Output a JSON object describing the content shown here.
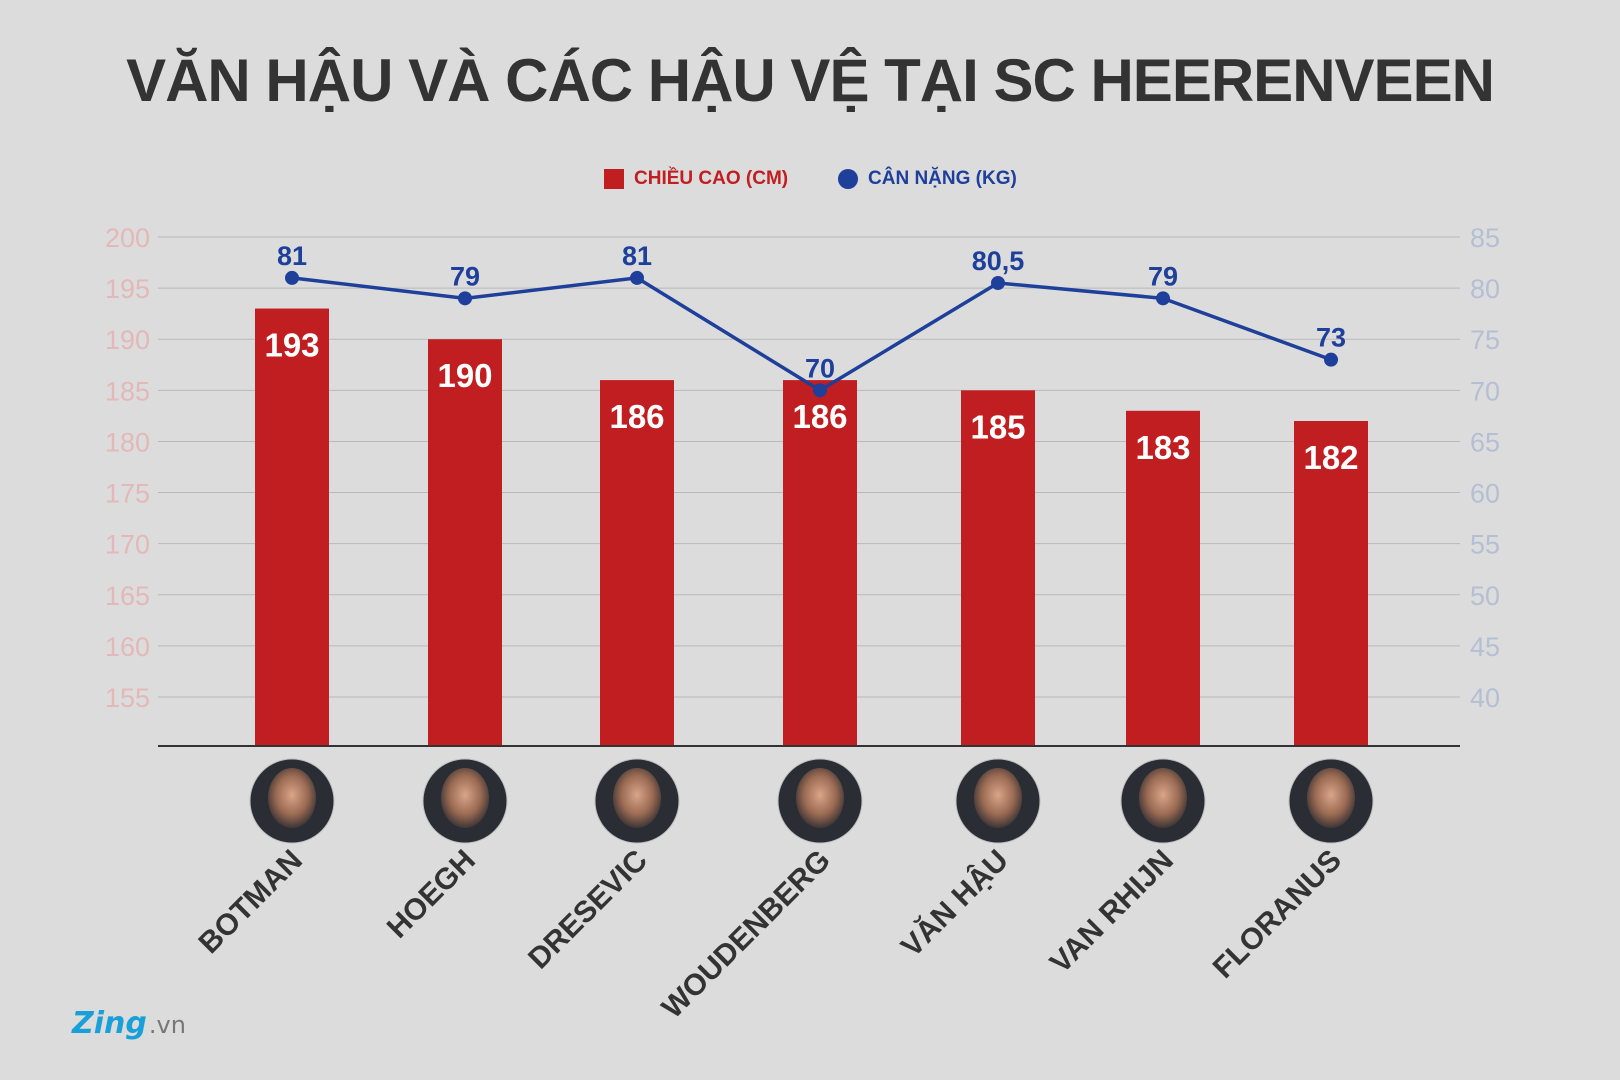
{
  "title": "VĂN HẬU VÀ CÁC HẬU VỆ TẠI SC HEERENVEEN",
  "legend": {
    "height_label": "CHIỀU CAO (CM)",
    "weight_label": "CÂN NẶNG (KG)"
  },
  "colors": {
    "bar": "#c01e20",
    "line": "#1e3f9a",
    "left_axis": "#e3b8b8",
    "right_axis": "#b4bfd3",
    "title": "#333333",
    "background": "#dcdcdc"
  },
  "chart_data": {
    "type": "bar",
    "title": "VĂN HẬU VÀ CÁC HẬU VỆ TẠI SC HEERENVEEN",
    "categories": [
      "BOTMAN",
      "HOEGH",
      "DRESEVIC",
      "WOUDENBERG",
      "VĂN HẬU",
      "VAN RHIJN",
      "FLORANUS"
    ],
    "series": [
      {
        "name": "CHIỀU CAO (CM)",
        "type": "bar",
        "axis": "left",
        "values": [
          193,
          190,
          186,
          186,
          185,
          183,
          182
        ],
        "labels": [
          "193",
          "190",
          "186",
          "186",
          "185",
          "183",
          "182"
        ]
      },
      {
        "name": "CÂN NẶNG (KG)",
        "type": "line",
        "axis": "right",
        "values": [
          81,
          79,
          81,
          70,
          80.5,
          79,
          73
        ],
        "labels": [
          "81",
          "79",
          "81",
          "70",
          "80,5",
          "79",
          "73"
        ]
      }
    ],
    "left_axis": {
      "ticks": [
        155,
        160,
        165,
        170,
        175,
        180,
        185,
        190,
        195,
        200
      ],
      "ylim": [
        150,
        200
      ]
    },
    "right_axis": {
      "ticks": [
        40,
        45,
        50,
        55,
        60,
        65,
        70,
        75,
        80,
        85
      ],
      "ylim": [
        35,
        85
      ]
    },
    "xlabel": "",
    "ylabel": "",
    "grid": true,
    "legend_position": "top-center"
  },
  "player_icons": [
    "player-photo-icon",
    "player-photo-icon",
    "player-photo-icon",
    "player-photo-icon",
    "player-photo-icon",
    "player-photo-icon",
    "player-photo-icon"
  ],
  "logo": {
    "brand": "Zing",
    "tld": ".vn"
  }
}
